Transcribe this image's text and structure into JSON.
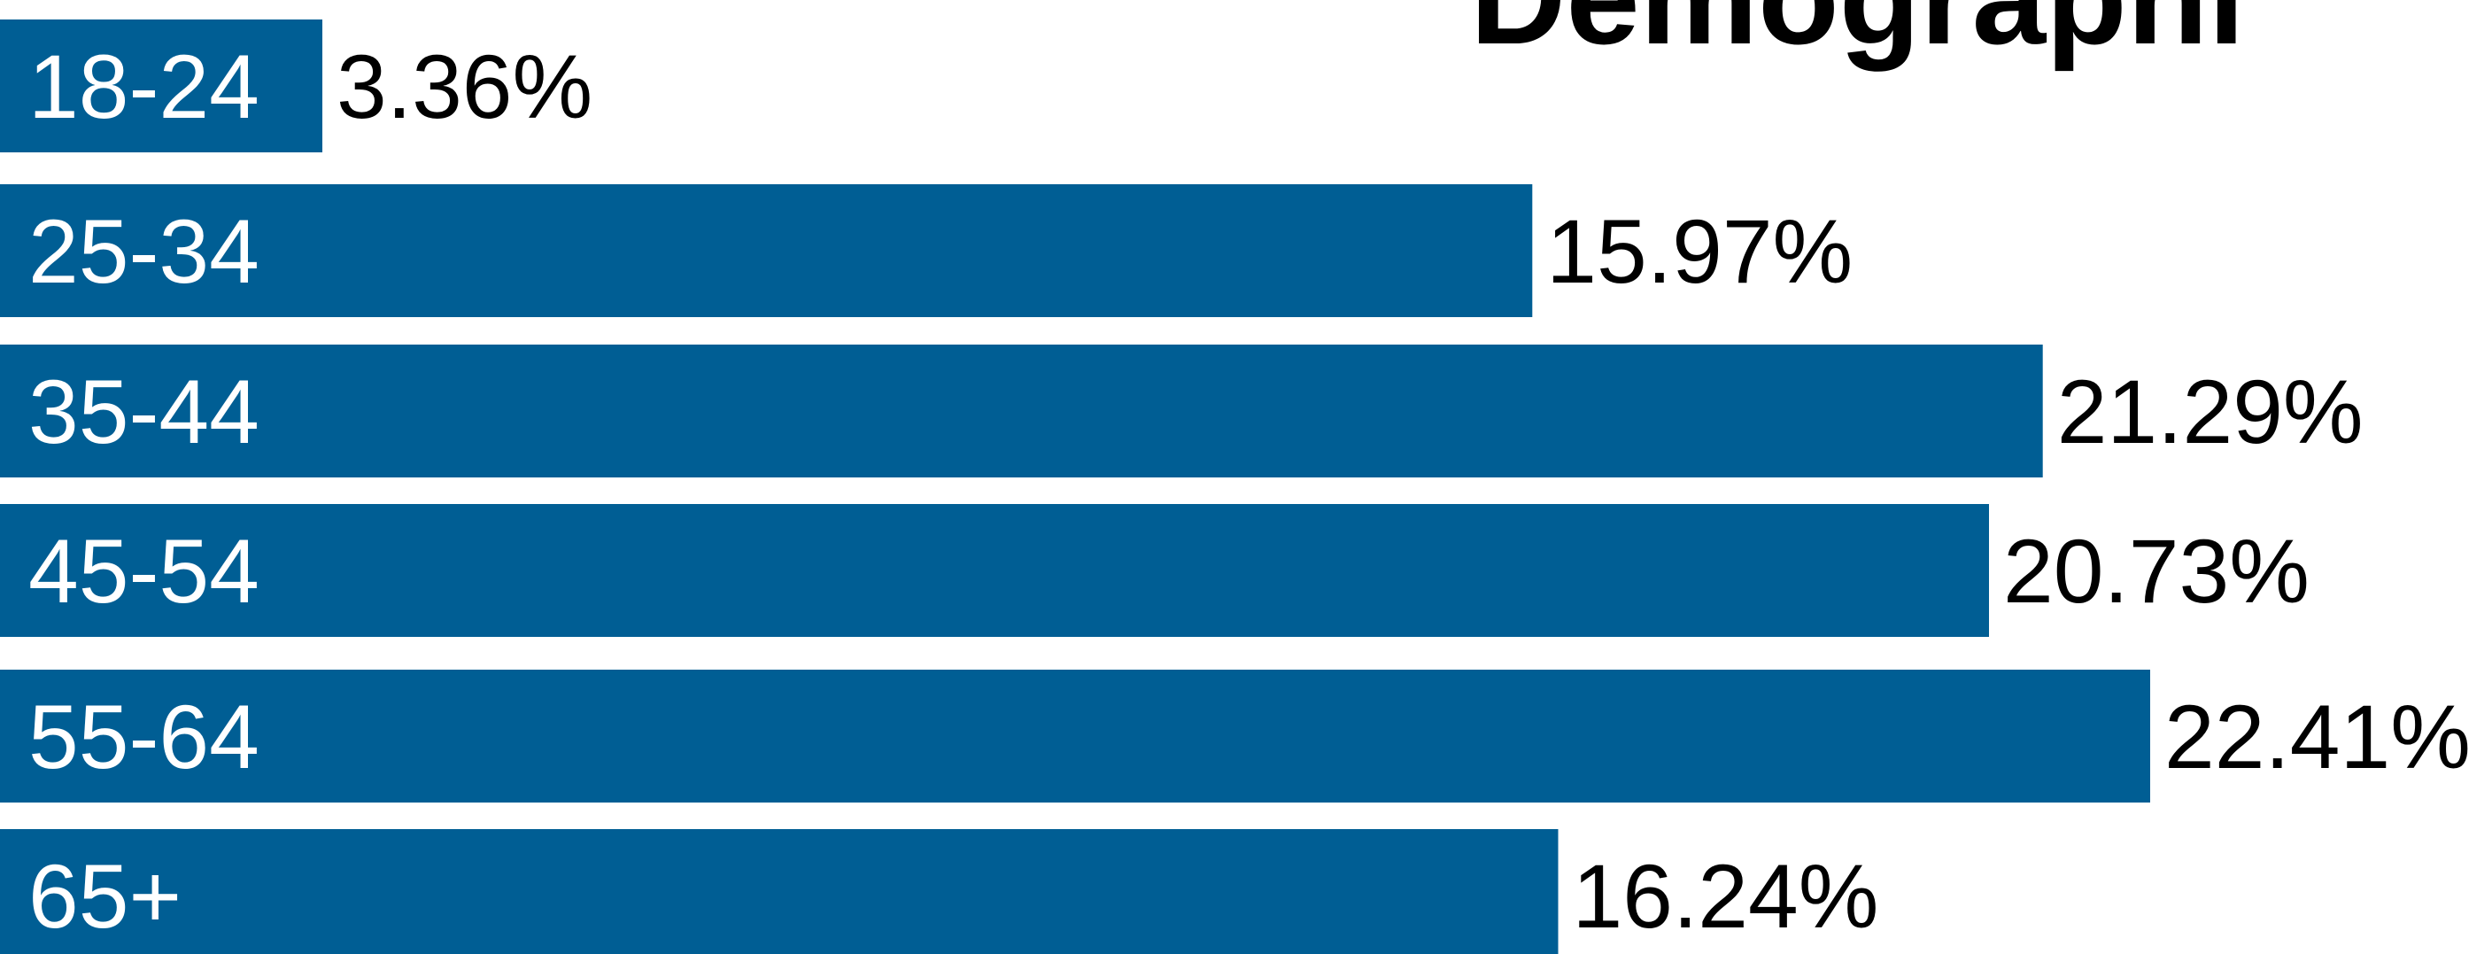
{
  "chart_data": {
    "type": "bar",
    "orientation": "horizontal",
    "title": "Demographi",
    "categories": [
      "18-24",
      "25-34",
      "35-44",
      "45-54",
      "55-64",
      "65+"
    ],
    "values": [
      3.36,
      15.97,
      21.29,
      20.73,
      22.41,
      16.24
    ],
    "value_labels": [
      "3.36%",
      "15.97%",
      "21.29%",
      "20.73%",
      "22.41%",
      "16.24%"
    ],
    "unit": "%",
    "xlim": [
      0,
      26
    ],
    "bar_color": "#005e94",
    "category_label_color": "#ffffff",
    "value_label_color": "#000000",
    "grid": false,
    "legend": "none"
  }
}
